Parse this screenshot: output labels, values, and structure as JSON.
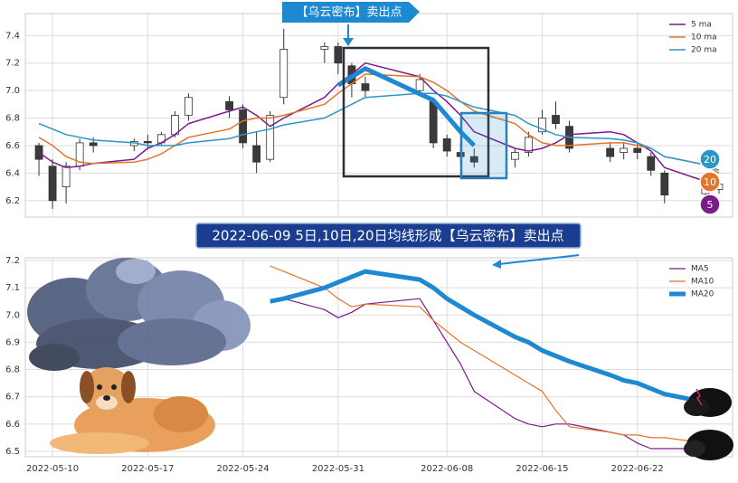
{
  "chart_data": [
    {
      "type": "candlestick",
      "xlim": [
        "2022-05-08",
        "2022-06-29"
      ],
      "x": [
        "2022-05-09",
        "2022-05-10",
        "2022-05-11",
        "2022-05-12",
        "2022-05-13",
        "2022-05-16",
        "2022-05-17",
        "2022-05-18",
        "2022-05-19",
        "2022-05-20",
        "2022-05-23",
        "2022-05-24",
        "2022-05-25",
        "2022-05-26",
        "2022-05-27",
        "2022-05-30",
        "2022-05-31",
        "2022-06-01",
        "2022-06-02",
        "2022-06-06",
        "2022-06-07",
        "2022-06-08",
        "2022-06-09",
        "2022-06-10",
        "2022-06-13",
        "2022-06-14",
        "2022-06-15",
        "2022-06-16",
        "2022-06-17",
        "2022-06-20",
        "2022-06-21",
        "2022-06-22",
        "2022-06-23",
        "2022-06-24",
        "2022-06-27",
        "2022-06-28"
      ],
      "open": [
        6.6,
        6.45,
        6.3,
        6.45,
        6.62,
        6.6,
        6.63,
        6.62,
        6.68,
        6.82,
        6.92,
        6.86,
        6.6,
        6.5,
        6.95,
        7.3,
        7.32,
        7.18,
        7.05,
        7.0,
        6.92,
        6.65,
        6.55,
        6.52,
        6.5,
        6.55,
        6.7,
        6.82,
        6.74,
        6.58,
        6.55,
        6.58,
        6.52,
        6.4,
        6.25,
        6.28
      ],
      "high": [
        6.62,
        6.5,
        6.48,
        6.65,
        6.66,
        6.65,
        6.68,
        6.7,
        6.85,
        6.98,
        6.96,
        6.9,
        6.7,
        6.85,
        7.45,
        7.35,
        7.35,
        7.2,
        7.1,
        7.12,
        6.95,
        6.68,
        6.62,
        6.58,
        6.58,
        6.7,
        6.86,
        6.92,
        6.78,
        6.62,
        6.62,
        6.62,
        6.55,
        6.42,
        6.33,
        6.35
      ],
      "low": [
        6.38,
        6.14,
        6.18,
        6.42,
        6.55,
        6.56,
        6.58,
        6.6,
        6.66,
        6.78,
        6.8,
        6.58,
        6.4,
        6.48,
        6.9,
        7.2,
        7.12,
        6.95,
        6.95,
        6.98,
        6.58,
        6.52,
        6.48,
        6.44,
        6.44,
        6.52,
        6.68,
        6.72,
        6.55,
        6.48,
        6.5,
        6.5,
        6.38,
        6.18,
        6.22,
        6.25
      ],
      "close": [
        6.5,
        6.2,
        6.45,
        6.62,
        6.6,
        6.63,
        6.62,
        6.68,
        6.82,
        6.95,
        6.86,
        6.62,
        6.48,
        6.82,
        7.3,
        7.32,
        7.2,
        7.05,
        7.0,
        7.08,
        6.62,
        6.56,
        6.52,
        6.48,
        6.55,
        6.66,
        6.8,
        6.76,
        6.58,
        6.52,
        6.58,
        6.55,
        6.42,
        6.24,
        6.3,
        6.32
      ],
      "up_color": "#ffffff",
      "down_color": "#3a3a3a",
      "series": [
        {
          "name": "5 ma",
          "color": "#7b1a8a",
          "values": [
            6.55,
            6.48,
            6.44,
            6.45,
            6.47,
            6.5,
            6.58,
            6.62,
            6.68,
            6.76,
            6.85,
            6.88,
            6.82,
            6.74,
            6.8,
            6.95,
            7.05,
            7.12,
            7.2,
            7.1,
            7.0,
            6.92,
            6.82,
            6.7,
            6.58,
            6.56,
            6.58,
            6.62,
            6.68,
            6.7,
            6.68,
            6.62,
            6.56,
            6.44,
            6.34,
            6.3
          ]
        },
        {
          "name": "10 ma",
          "color": "#e2742b",
          "values": [
            6.66,
            6.6,
            6.52,
            6.48,
            6.47,
            6.48,
            6.5,
            6.54,
            6.6,
            6.66,
            6.72,
            6.78,
            6.8,
            6.8,
            6.82,
            6.9,
            6.98,
            7.05,
            7.12,
            7.1,
            7.06,
            7.0,
            6.92,
            6.85,
            6.76,
            6.68,
            6.62,
            6.6,
            6.6,
            6.62,
            6.62,
            6.6,
            6.58,
            6.52,
            6.46,
            6.4
          ]
        },
        {
          "name": "20 ma",
          "color": "#2a96c8",
          "values": [
            6.76,
            6.72,
            6.68,
            6.66,
            6.64,
            6.62,
            6.6,
            6.6,
            6.6,
            6.62,
            6.65,
            6.68,
            6.7,
            6.72,
            6.75,
            6.8,
            6.85,
            6.9,
            6.95,
            6.98,
            6.98,
            6.96,
            6.92,
            6.88,
            6.82,
            6.76,
            6.72,
            6.68,
            6.66,
            6.65,
            6.64,
            6.62,
            6.58,
            6.52,
            6.46,
            6.42
          ]
        }
      ],
      "highlight": {
        "color": "#1e88d0",
        "x": [
          "2022-05-31",
          "2022-06-02",
          "2022-06-07",
          "2022-06-09",
          "2022-06-10"
        ],
        "values": [
          7.04,
          7.16,
          6.93,
          6.7,
          6.6
        ]
      },
      "ylim": [
        6.08,
        7.56
      ],
      "yticks": [
        6.2,
        6.4,
        6.6,
        6.8,
        {
          "value": 7,
          "label": "7.0"
        },
        7.2,
        7.4
      ],
      "grid": true,
      "legend": "upper right",
      "callout": "【乌云密布】卖出点",
      "badges": [
        {
          "text": "20",
          "color": "#2a96c8"
        },
        {
          "text": "10",
          "color": "#e2742b"
        },
        {
          "text": "5",
          "color": "#7b1a8a"
        }
      ]
    },
    {
      "type": "line",
      "xlim": [
        "2022-05-08",
        "2022-06-29"
      ],
      "x": [
        "2022-05-26",
        "2022-05-27",
        "2022-05-30",
        "2022-05-31",
        "2022-06-01",
        "2022-06-02",
        "2022-06-06",
        "2022-06-07",
        "2022-06-08",
        "2022-06-09",
        "2022-06-10",
        "2022-06-13",
        "2022-06-14",
        "2022-06-15",
        "2022-06-16",
        "2022-06-17",
        "2022-06-20",
        "2022-06-21",
        "2022-06-22",
        "2022-06-23",
        "2022-06-24",
        "2022-06-27"
      ],
      "series": [
        {
          "name": "MA5",
          "color": "#7b1a8a",
          "linewidth": 1.2,
          "values": [
            null,
            7.06,
            7.02,
            6.99,
            7.01,
            7.04,
            7.06,
            6.98,
            6.9,
            6.82,
            6.72,
            6.62,
            6.6,
            6.59,
            6.6,
            6.6,
            6.57,
            6.56,
            6.53,
            6.51,
            6.51,
            6.51
          ]
        },
        {
          "name": "MA10",
          "color": "#e2742b",
          "linewidth": 1.2,
          "values": [
            7.18,
            7.16,
            7.1,
            7.06,
            7.03,
            7.04,
            7.03,
            6.98,
            6.94,
            6.9,
            6.87,
            6.78,
            6.75,
            6.72,
            6.65,
            6.59,
            6.57,
            6.56,
            6.56,
            6.55,
            6.55,
            6.53
          ]
        },
        {
          "name": "MA20",
          "color": "#1e88d0",
          "linewidth": 5,
          "values": [
            7.05,
            7.06,
            7.1,
            7.12,
            7.14,
            7.16,
            7.13,
            7.1,
            7.06,
            7.03,
            7.0,
            6.92,
            6.9,
            6.87,
            6.85,
            6.83,
            6.78,
            6.76,
            6.75,
            6.73,
            6.71,
            6.68
          ]
        }
      ],
      "ylim": [
        6.48,
        7.21
      ],
      "yticks": [
        6.5,
        6.6,
        6.7,
        6.8,
        6.9,
        {
          "value": 7,
          "label": "7.0"
        },
        7.1,
        7.2
      ],
      "xticks": [
        "2022-05-10",
        "2022-05-17",
        "2022-05-24",
        "2022-05-31",
        "2022-06-08",
        "2022-06-15",
        "2022-06-22"
      ],
      "grid": true,
      "legend": "upper right",
      "banner": "2022-06-09 5日,10日,20日均线形成【乌云密布】卖出点"
    }
  ]
}
